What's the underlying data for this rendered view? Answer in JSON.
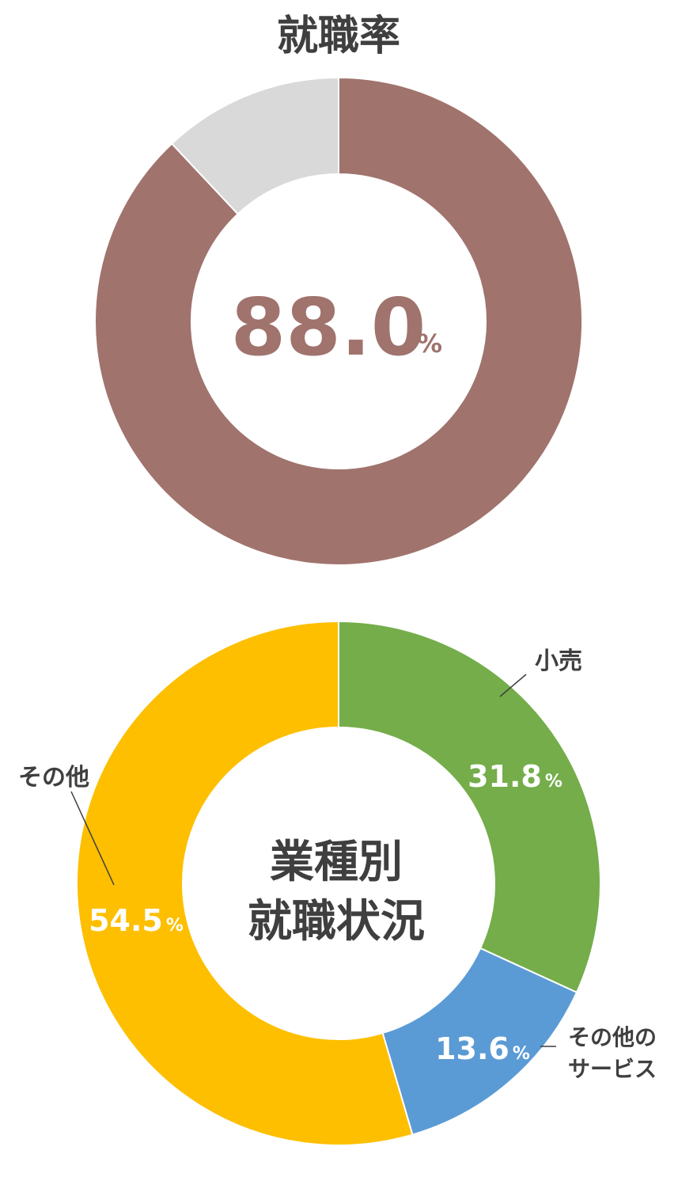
{
  "charts": {
    "employment_rate": {
      "title": "就職率",
      "center_value": "88.0",
      "center_unit": "%",
      "accent_color": "#a0736d",
      "remainder_color": "#d9d9d9"
    },
    "industry": {
      "center_line1": "業種別",
      "center_line2": "就職状況",
      "labels": {
        "retail": "小売",
        "other_services_line1": "その他の",
        "other_services_line2": "サービス",
        "other": "その他"
      },
      "values": {
        "retail": "31.8",
        "other_services": "13.6",
        "other": "54.5"
      },
      "unit": "%"
    }
  },
  "chart_data": [
    {
      "type": "pie",
      "variant": "donut",
      "title": "就職率",
      "categories": [
        "",
        ""
      ],
      "values": [
        88.0,
        12.0
      ],
      "colors": [
        "#a0736d",
        "#d9d9d9"
      ]
    },
    {
      "type": "pie",
      "variant": "donut",
      "title": "業種別 就職状況",
      "categories": [
        "小売",
        "その他のサービス",
        "その他"
      ],
      "values": [
        31.8,
        13.6,
        54.5
      ],
      "colors": [
        "#74ad4a",
        "#5b9bd5",
        "#fdbf00"
      ]
    }
  ]
}
